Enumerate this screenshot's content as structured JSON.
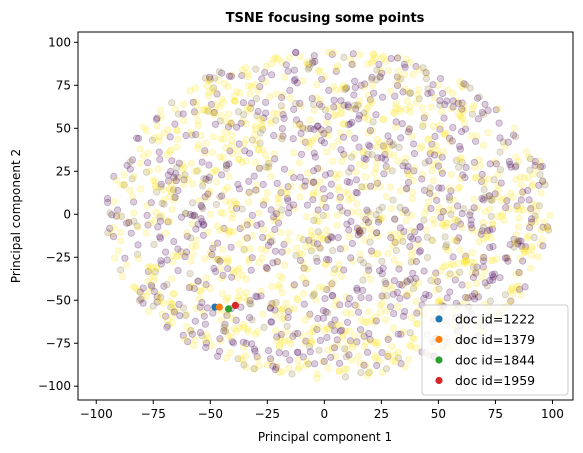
{
  "chart_data": {
    "type": "scatter",
    "title": "TSNE focusing some points",
    "xlabel": "Principal component 1",
    "ylabel": "Principal component 2",
    "xlim": [
      -108,
      109
    ],
    "ylim": [
      -108,
      106
    ],
    "xticks": [
      -100,
      -75,
      -50,
      -25,
      0,
      25,
      50,
      75,
      100
    ],
    "yticks": [
      -100,
      -75,
      -50,
      -25,
      0,
      25,
      50,
      75,
      100
    ],
    "grid": false,
    "legend_position": "bottom-right",
    "background_points": {
      "approx_count": 2000,
      "cloud_center": [
        2,
        0
      ],
      "cloud_radius": [
        98,
        96
      ],
      "colors": [
        "#fde725",
        "#440154",
        "#8c7a3c"
      ],
      "opacity": 0.2
    },
    "highlighted": [
      {
        "name": "doc id=1222",
        "color": "#1f77b4",
        "x": -48,
        "y": -54
      },
      {
        "name": "doc id=1379",
        "color": "#ff7f0e",
        "x": -46,
        "y": -54
      },
      {
        "name": "doc id=1844",
        "color": "#2ca02c",
        "x": -42,
        "y": -55
      },
      {
        "name": "doc id=1959",
        "color": "#d62728",
        "x": -39,
        "y": -53
      }
    ]
  }
}
